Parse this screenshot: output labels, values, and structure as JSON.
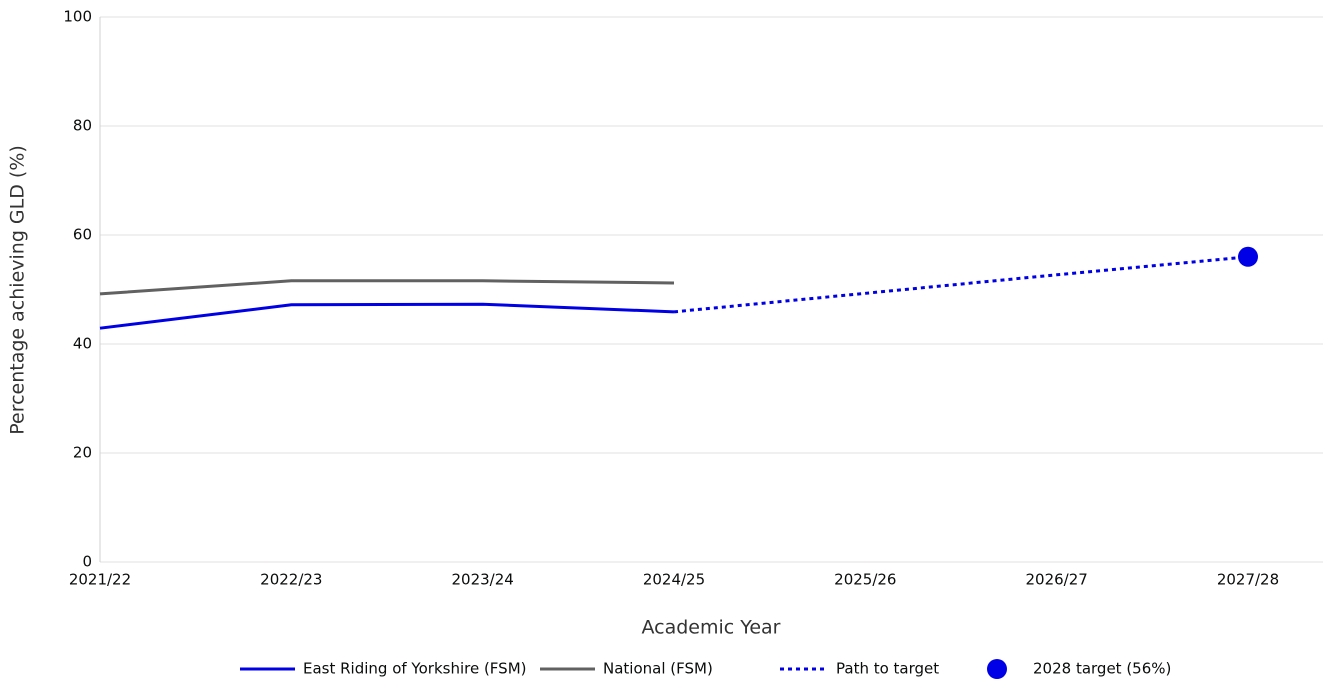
{
  "chart_data": {
    "type": "line",
    "x_label": "Academic Year",
    "y_label": "Percentage achieving GLD (%)",
    "categories": [
      "2021/22",
      "2022/23",
      "2023/24",
      "2024/25",
      "2025/26",
      "2026/27",
      "2027/28"
    ],
    "series": [
      {
        "name": "East Riding of Yorkshire (FSM)",
        "color": "#0000e6",
        "line_style": "solid",
        "values": [
          42.9,
          47.2,
          47.3,
          45.9,
          null,
          null,
          null
        ]
      },
      {
        "name": "National (FSM)",
        "color": "#616161",
        "line_style": "solid",
        "values": [
          49.2,
          51.6,
          51.6,
          51.2,
          null,
          null,
          null
        ]
      },
      {
        "name": "Path to target",
        "color": "#0000e6",
        "line_style": "dotted",
        "values": [
          null,
          null,
          null,
          45.9,
          49.3,
          52.7,
          56
        ]
      },
      {
        "name": "2028 target (56%)",
        "color": "#0000e6",
        "line_style": "marker",
        "values": [
          null,
          null,
          null,
          null,
          null,
          null,
          56
        ]
      }
    ],
    "ylim": [
      0,
      100
    ],
    "yticks": [
      0,
      20,
      40,
      60,
      80,
      100
    ],
    "grid": true,
    "legend": "bottom"
  }
}
